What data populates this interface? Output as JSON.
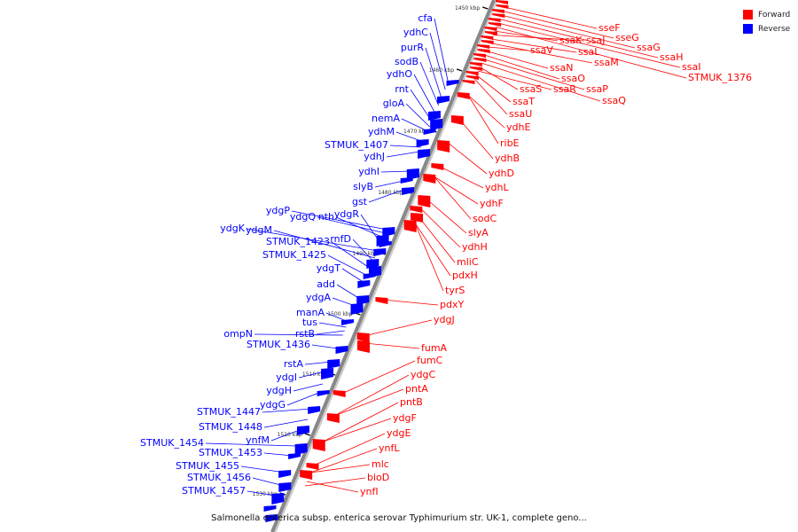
{
  "colors": {
    "forward": "#ff0000",
    "reverse": "#0000ff",
    "backbone": "#888888",
    "background": "#ffffff"
  },
  "legend": [
    {
      "label": "Forward",
      "color": "#ff0000"
    },
    {
      "label": "Reverse",
      "color": "#0000ff"
    }
  ],
  "caption": "Salmonella enterica subsp. enterica serovar Typhimurium str. UK-1, complete geno...",
  "scale_ticks": [
    "1450 kbp",
    "1460 kbp",
    "1470 kbp",
    "1480 kbp",
    "1490 kbp",
    "1500 kbp",
    "1510 kbp",
    "1520 kbp",
    "1530 kbp"
  ],
  "forward_genes": [
    "sseF",
    "sseG",
    "ssaG",
    "ssaH",
    "ssaI",
    "STMUK_1376",
    "ssaK",
    "ssaJ",
    "ssaL",
    "ssaM",
    "ssaV",
    "ssaN",
    "ssaO",
    "ssaP",
    "ssaQ",
    "ssaS",
    "ssaR",
    "ssaT",
    "ssaU",
    "ydhE",
    "ribE",
    "ydhB",
    "ydhD",
    "ydhL",
    "ydhF",
    "sodC",
    "slyA",
    "ydhH",
    "mliC",
    "pdxH",
    "tyrS",
    "pdxY",
    "ydgJ",
    "fumA",
    "fumC",
    "ydgC",
    "pntA",
    "pntB",
    "ydgF",
    "ydgE",
    "ynfL",
    "mlc",
    "bioD",
    "ynfI"
  ],
  "reverse_genes": [
    "cfa",
    "ydhC",
    "purR",
    "sodB",
    "ydhO",
    "rnt",
    "gloA",
    "nemA",
    "ydhM",
    "STMUK_1407",
    "ydhJ",
    "ydhI",
    "slyB",
    "gst",
    "ydgP",
    "ydgQ",
    "nth",
    "ydgR",
    "ydgK",
    "ydgM",
    "rnfD",
    "STMUK_1423",
    "STMUK_1425",
    "ydgT",
    "add",
    "ydgA",
    "manA",
    "tus",
    "rstB",
    "ompN",
    "STMUK_1436",
    "rstA",
    "ydgI",
    "ydgH",
    "ydgG",
    "STMUK_1447",
    "STMUK_1448",
    "ynfM",
    "STMUK_1454",
    "STMUK_1453",
    "STMUK_1455",
    "STMUK_1456",
    "STMUK_1457"
  ]
}
